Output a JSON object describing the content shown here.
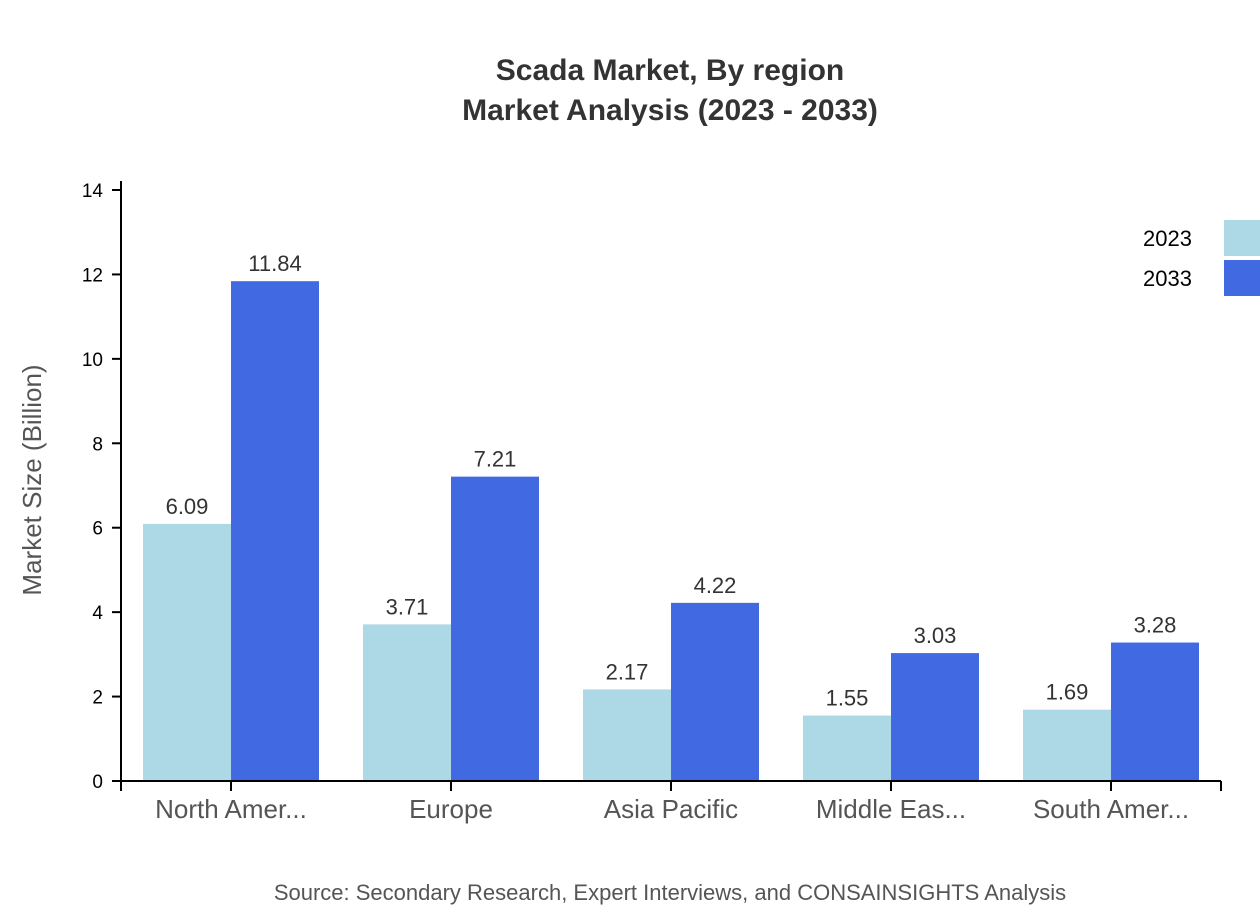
{
  "chart_data": {
    "type": "bar",
    "title": "Scada Market, By region",
    "subtitle": "Market Analysis (2023 - 2033)",
    "ylabel": "Market Size (Billion)",
    "xlabel": "",
    "categories": [
      "North Amer...",
      "Europe",
      "Asia Pacific",
      "Middle Eas...",
      "South Amer..."
    ],
    "series": [
      {
        "name": "2023",
        "color": "#add8e6",
        "values": [
          6.09,
          3.71,
          2.17,
          1.55,
          1.69
        ]
      },
      {
        "name": "2033",
        "color": "#4169e1",
        "values": [
          11.84,
          7.21,
          4.22,
          3.03,
          3.28
        ]
      }
    ],
    "ylim": [
      0,
      14
    ],
    "yticks": [
      0,
      2,
      4,
      6,
      8,
      10,
      12,
      14
    ],
    "grid": false,
    "legend": "top-right",
    "source": "Source: Secondary Research, Expert Interviews, and CONSAINSIGHTS Analysis"
  }
}
